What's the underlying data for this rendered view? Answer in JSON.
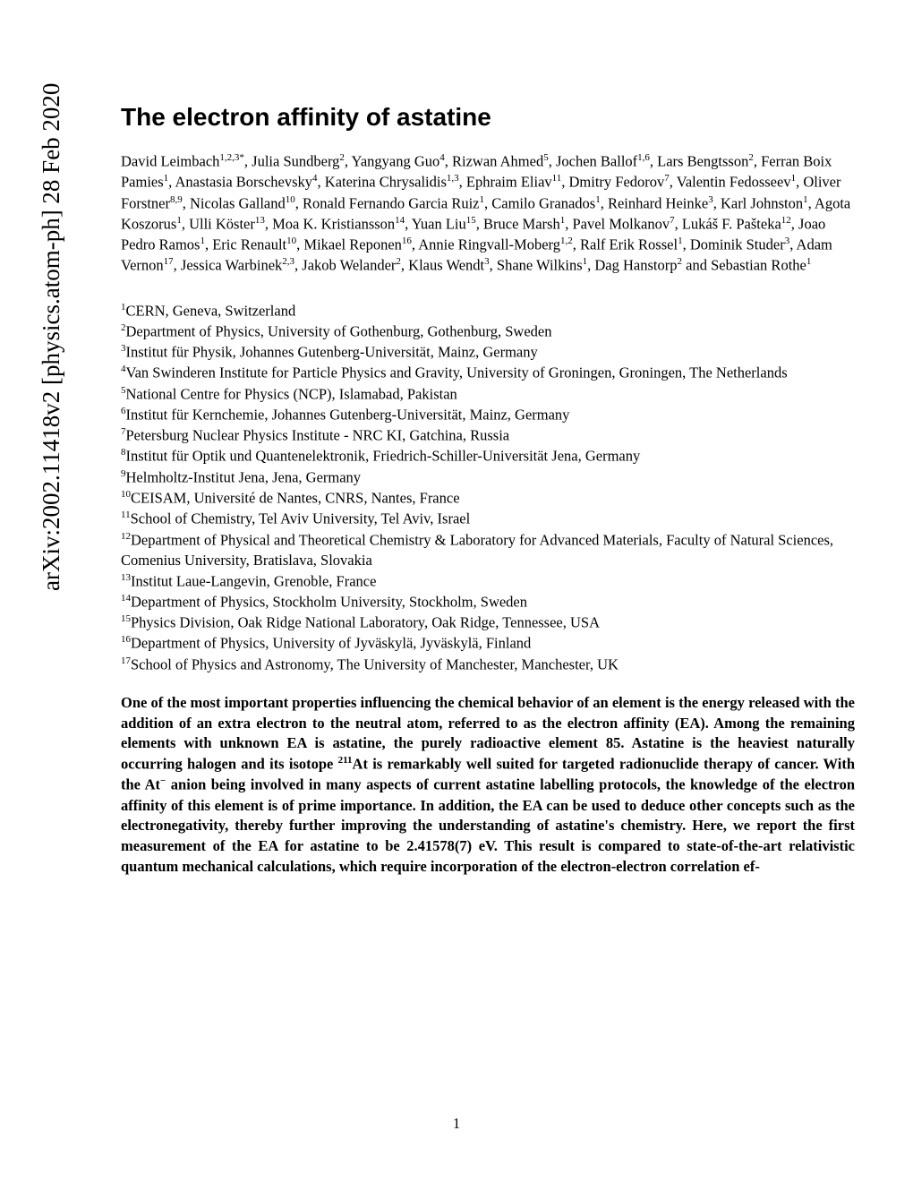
{
  "arxiv": "arXiv:2002.11418v2  [physics.atom-ph]  28 Feb 2020",
  "title": "The electron affinity of astatine",
  "authors_html": "David Leimbach<sup>1,2,3*</sup>, Julia Sundberg<sup>2</sup>, Yangyang Guo<sup>4</sup>, Rizwan Ahmed<sup>5</sup>, Jochen Ballof<sup>1,6</sup>, Lars Bengtsson<sup>2</sup>, Ferran Boix Pamies<sup>1</sup>, Anastasia Borschevsky<sup>4</sup>, Katerina Chrysalidis<sup>1,3</sup>, Ephraim Eliav<sup>11</sup>, Dmitry Fedorov<sup>7</sup>, Valentin Fedosseev<sup>1</sup>, Oliver Forstner<sup>8,9</sup>, Nicolas Galland<sup>10</sup>, Ronald Fernando Garcia Ruiz<sup>1</sup>, Camilo Granados<sup>1</sup>, Reinhard Heinke<sup>3</sup>, Karl Johnston<sup>1</sup>, Agota Koszorus<sup>1</sup>, Ulli Köster<sup>13</sup>, Moa K. Kristiansson<sup>14</sup>, Yuan Liu<sup>15</sup>, Bruce Marsh<sup>1</sup>, Pavel Molkanov<sup>7</sup>, Lukáš F. Pašteka<sup>12</sup>, Joao Pedro Ramos<sup>1</sup>, Eric Renault<sup>10</sup>, Mikael Reponen<sup>16</sup>, Annie Ringvall-Moberg<sup>1,2</sup>, Ralf Erik Rossel<sup>1</sup>, Dominik Studer<sup>3</sup>, Adam Vernon<sup>17</sup>, Jessica Warbinek<sup>2,3</sup>, Jakob Welander<sup>2</sup>, Klaus Wendt<sup>3</sup>, Shane Wilkins<sup>1</sup>, Dag Hanstorp<sup>2</sup> and Sebastian Rothe<sup>1</sup>",
  "affiliations_html": "<sup>1</sup>CERN, Geneva, Switzerland<br><sup>2</sup>Department of Physics, University of Gothenburg, Gothenburg, Sweden<br><sup>3</sup>Institut für Physik, Johannes Gutenberg-Universität, Mainz, Germany<br><sup>4</sup>Van Swinderen Institute for Particle Physics and Gravity, University of Groningen, Groningen, The Netherlands<br><sup>5</sup>National Centre for Physics (NCP), Islamabad, Pakistan<br><sup>6</sup>Institut für Kernchemie, Johannes Gutenberg-Universität, Mainz, Germany<br><sup>7</sup>Petersburg Nuclear Physics Institute - NRC KI, Gatchina, Russia<br><sup>8</sup>Institut für Optik und Quantenelektronik, Friedrich-Schiller-Universität Jena, Germany<br><sup>9</sup>Helmholtz-Institut Jena, Jena, Germany<br><sup>10</sup>CEISAM, Université de Nantes, CNRS, Nantes, France<br><sup>11</sup>School of Chemistry, Tel Aviv University, Tel Aviv, Israel<br><sup>12</sup>Department of Physical and Theoretical Chemistry & Laboratory for Advanced Materials, Faculty of Natural Sciences, Comenius University, Bratislava, Slovakia<br><sup>13</sup>Institut Laue-Langevin, Grenoble, France<br><sup>14</sup>Department of Physics, Stockholm University, Stockholm, Sweden<br><sup>15</sup>Physics Division, Oak Ridge National Laboratory, Oak Ridge, Tennessee, USA<br><sup>16</sup>Department of Physics, University of Jyväskylä, Jyväskylä, Finland<br><sup>17</sup>School of Physics and Astronomy, The University of Manchester, Manchester, UK",
  "abstract_html": "One of the most important properties influencing the chemical behavior of an element is the energy released with the addition of an extra electron to the neutral atom, referred to as the electron affinity (EA). Among the remaining elements with unknown EA is astatine, the purely radioactive element 85. Astatine is the heaviest naturally occurring halogen and its isotope <sup>211</sup>At is remarkably well suited for targeted radionuclide therapy of cancer. With the At<sup>−</sup> anion being involved in many aspects of current astatine labelling protocols, the knowledge of the electron affinity of this element is of prime importance. In addition, the EA can be used to deduce other concepts such as the electronegativity, thereby further improving the understanding of astatine's chemistry. Here, we report the first measurement of the EA for astatine to be 2.41578(7) eV. This result is compared to state-of-the-art relativistic quantum mechanical calculations, which require incorporation of the electron-electron correlation ef-",
  "page_number": "1"
}
